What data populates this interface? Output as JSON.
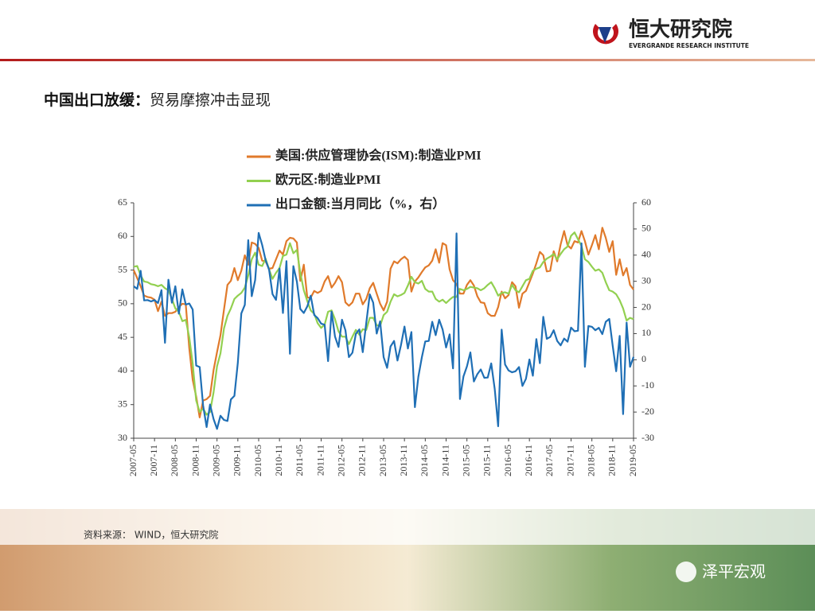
{
  "header": {
    "logo_cn": "恒大研究院",
    "logo_en": "EVERGRANDE RESEARCH INSTITUTE"
  },
  "slide_title": {
    "lead": "中国出口放缓：",
    "rest": "贸易摩擦冲击显现"
  },
  "source": "资料来源：  WIND，恒大研究院",
  "watermark": "泽平宏观",
  "chart_data": {
    "type": "line",
    "categories": [
      "2007-05",
      null,
      null,
      null,
      null,
      null,
      "2007-11",
      null,
      null,
      null,
      null,
      null,
      "2008-05",
      null,
      null,
      null,
      null,
      null,
      "2008-11",
      null,
      null,
      null,
      null,
      null,
      "2009-05",
      null,
      null,
      null,
      null,
      null,
      "2009-11",
      null,
      null,
      null,
      null,
      null,
      "2010-05",
      null,
      null,
      null,
      null,
      null,
      "2010-11",
      null,
      null,
      null,
      null,
      null,
      "2011-05",
      null,
      null,
      null,
      null,
      null,
      "2011-11",
      null,
      null,
      null,
      null,
      null,
      "2012-05",
      null,
      null,
      null,
      null,
      null,
      "2012-11",
      null,
      null,
      null,
      null,
      null,
      "2013-05",
      null,
      null,
      null,
      null,
      null,
      "2013-11",
      null,
      null,
      null,
      null,
      null,
      "2014-05",
      null,
      null,
      null,
      null,
      null,
      "2014-11",
      null,
      null,
      null,
      null,
      null,
      "2015-05",
      null,
      null,
      null,
      null,
      null,
      "2015-11",
      null,
      null,
      null,
      null,
      null,
      "2016-05",
      null,
      null,
      null,
      null,
      null,
      "2016-11",
      null,
      null,
      null,
      null,
      null,
      "2017-05",
      null,
      null,
      null,
      null,
      null,
      "2017-11",
      null,
      null,
      null,
      null,
      null,
      "2018-05",
      null,
      null,
      null,
      null,
      null,
      "2018-11",
      null,
      null,
      null,
      null,
      null,
      "2019-05"
    ],
    "ylim": [
      30,
      65
    ],
    "yticks": [
      30,
      35,
      40,
      45,
      50,
      55,
      60,
      65
    ],
    "y2lim": [
      -30,
      60
    ],
    "y2ticks": [
      -30,
      -20,
      -10,
      0,
      10,
      20,
      30,
      40,
      50,
      60
    ],
    "series": [
      {
        "name": "美国:供应管理协会(ISM):制造业PMI",
        "color": "#e07a2b",
        "values": [
          55,
          53.8,
          52.6,
          51.2,
          51,
          50.9,
          50.6,
          48.9,
          50.3,
          48.2,
          48.6,
          48.6,
          48.8,
          49.5,
          50,
          49.9,
          43.4,
          38.7,
          36.2,
          33.1,
          35.6,
          35.8,
          36.3,
          40.1,
          42.8,
          45.3,
          49.1,
          52.8,
          53.4,
          55.3,
          53.5,
          54.9,
          57.2,
          55.8,
          59.1,
          58.9,
          58.3,
          56.4,
          56.3,
          55.2,
          55.3,
          56.6,
          57.9,
          57.3,
          59.3,
          59.8,
          59.7,
          59.1,
          53.4,
          55.8,
          50.9,
          50.9,
          51.9,
          51.6,
          51.9,
          53.3,
          54.1,
          52.4,
          53.1,
          54.1,
          53.2,
          50.2,
          49.7,
          50.2,
          51.5,
          51.5,
          49.9,
          50.7,
          52.3,
          53.1,
          51.5,
          50,
          49,
          50.3,
          55.2,
          56.3,
          56,
          56.6,
          57,
          56.5,
          51.8,
          53.3,
          53.9,
          54.7,
          55.4,
          55.7,
          56.4,
          58.1,
          56.1,
          59,
          58.7,
          55.1,
          53.5,
          52.9,
          51.5,
          51.5,
          52.8,
          53.5,
          52.7,
          51.1,
          50.2,
          50.1,
          48.6,
          48.2,
          48.2,
          49.5,
          51.8,
          50.8,
          51.3,
          53.2,
          52.6,
          49.4,
          51.5,
          51.9,
          53.2,
          54.5,
          56,
          57.7,
          57.2,
          54.8,
          54.9,
          57.8,
          56.3,
          58.8,
          60.8,
          58.7,
          58.2,
          59.3,
          59.1,
          60.8,
          59.3,
          57.3,
          58.7,
          60.2,
          58.1,
          61.3,
          59.8,
          57.7,
          59.3,
          54.3,
          56.6,
          54.2,
          55.3,
          52.8,
          52.1
        ]
      },
      {
        "name": "欧元区:制造业PMI",
        "color": "#92d050",
        "values": [
          55.5,
          55.6,
          54.2,
          53.3,
          53.2,
          52.9,
          52.8,
          52.6,
          52.8,
          52.3,
          52,
          50.7,
          49.3,
          48.8,
          47.4,
          47.6,
          45,
          41.1,
          35.6,
          33.9,
          34.4,
          33.5,
          33.9,
          36.8,
          40.7,
          42.6,
          46.3,
          48.2,
          49.3,
          50.7,
          51.2,
          51.6,
          52.4,
          54.2,
          56.6,
          57.6,
          55.8,
          55.6,
          56.7,
          55.1,
          53.7,
          54.6,
          55.3,
          57.1,
          57.3,
          59,
          57.5,
          58,
          54.6,
          52,
          50.4,
          49,
          48.5,
          47.1,
          46.4,
          46.9,
          48.8,
          49,
          47.7,
          45.9,
          45.1,
          45.1,
          44,
          45.1,
          46.1,
          45.4,
          46.2,
          46.1,
          47.9,
          47.9,
          46.8,
          46.7,
          48.3,
          48.8,
          50.3,
          51.4,
          51.1,
          51.3,
          51.6,
          52.7,
          54,
          53.2,
          53,
          53.4,
          52.2,
          51.8,
          51.8,
          50.7,
          50.3,
          50.6,
          50.1,
          50.6,
          51,
          51,
          52.2,
          52,
          52.2,
          52.5,
          52.4,
          52.3,
          52,
          52.3,
          52.8,
          53.2,
          52.3,
          51.2,
          51.6,
          51.7,
          51.5,
          52.8,
          52,
          51.7,
          52.6,
          53.5,
          53.7,
          54.9,
          55.2,
          55.4,
          56.2,
          56.7,
          57,
          57.4,
          56.6,
          57.4,
          58.1,
          58.5,
          60.1,
          60.6,
          59.6,
          58.6,
          56.6,
          56.2,
          55.5,
          54.9,
          55.1,
          54.6,
          53.2,
          52,
          51.8,
          51.4,
          50.5,
          49.3,
          47.5,
          47.9,
          47.7
        ]
      },
      {
        "name": "出口金额:当月同比（%，右）",
        "color": "#1f6fb5",
        "axis": "y2",
        "values": [
          28.1,
          27.1,
          34,
          22.7,
          22.8,
          22.3,
          22.8,
          21.7,
          26.6,
          6.5,
          30.6,
          21.8,
          28.1,
          17.6,
          26.9,
          21.1,
          21.5,
          19.2,
          -2.2,
          -2.8,
          -17.5,
          -25.7,
          -17.1,
          -22.6,
          -26.4,
          -21.4,
          -23,
          -23.4,
          -15.2,
          -13.8,
          -1.2,
          17.7,
          21,
          45.7,
          24.3,
          30.5,
          48.5,
          43.9,
          38.1,
          34.4,
          25.1,
          22.9,
          34.9,
          17.9,
          37.7,
          2.3,
          35.8,
          29.9,
          19.4,
          17.9,
          20.4,
          24.5,
          17.1,
          15.9,
          13.8,
          13.4,
          -0.5,
          18.4,
          8.9,
          4.9,
          15.3,
          11.3,
          1,
          2.7,
          9.9,
          11.6,
          2.9,
          14.1,
          25,
          21.8,
          10,
          14.7,
          1,
          -3.1,
          5.1,
          7.2,
          -0.3,
          5.6,
          12.7,
          4.3,
          10.6,
          -18.1,
          -6.6,
          0.9,
          7,
          7.2,
          14.5,
          9.4,
          15.3,
          11.6,
          4.7,
          9.7,
          -3.3,
          48.3,
          -15,
          -6.4,
          -2.5,
          2.8,
          -8.3,
          -5.5,
          -3.7,
          -6.9,
          -6.8,
          -1.4,
          -11.2,
          -25.4,
          11.5,
          -1.8,
          -4.1,
          -4.8,
          -4.4,
          -2.8,
          -10,
          -7.3,
          0.1,
          -6.1,
          7.9,
          -1.3,
          16.4,
          8,
          8.7,
          11.3,
          7.2,
          5.5,
          8.1,
          6.9,
          12.3,
          10.9,
          11.1,
          44.5,
          -2.7,
          12.9,
          12.6,
          11.3,
          12.2,
          9.8,
          14.5,
          15.6,
          5.4,
          -4.4,
          9.1,
          -20.8,
          14.2,
          -2.7,
          1.1
        ]
      }
    ]
  }
}
